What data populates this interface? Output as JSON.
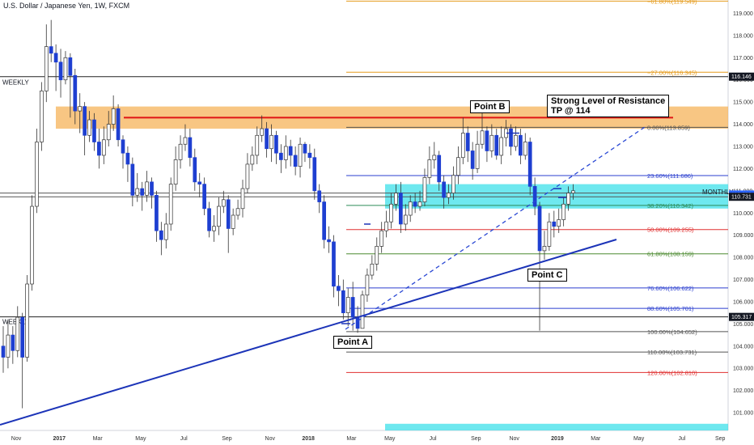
{
  "title": "U.S. Dollar / Japanese Yen, 1W, FXCM",
  "colors": {
    "up": "#ffffff",
    "down": "#1e3fd1",
    "wick": "#333333",
    "resistance_zone": "#f5b35a",
    "support_zone": "#3ee0ea",
    "resistance_line": "#e01515",
    "trendline": "#1c34b8",
    "dashed": "#2a48d4"
  },
  "labels": {
    "weekly_top": "WEEKLY",
    "weekly_bottom": "WEEKLY",
    "monthly": "MONTHLY",
    "point_a": "Point A",
    "point_b": "Point B",
    "point_c": "Point C",
    "resistance_note_1": "Strong Level of Resistance",
    "resistance_note_2": "TP @ 114"
  },
  "chart_data": {
    "type": "candlestick",
    "title": "U.S. Dollar / Japanese Yen, 1W, FXCM",
    "ylim": [
      100.2,
      119.6
    ],
    "y_ticks": [
      101,
      102,
      103,
      104,
      105,
      106,
      107,
      108,
      109,
      110,
      111,
      112,
      113,
      114,
      115,
      116,
      117,
      118,
      119
    ],
    "x_ticks": [
      {
        "label": "Nov",
        "bold": false,
        "week": 0
      },
      {
        "label": "2017",
        "bold": true,
        "week": 9
      },
      {
        "label": "Mar",
        "bold": false,
        "week": 17
      },
      {
        "label": "May",
        "bold": false,
        "week": 26
      },
      {
        "label": "Jul",
        "bold": false,
        "week": 35
      },
      {
        "label": "Sep",
        "bold": false,
        "week": 44
      },
      {
        "label": "Nov",
        "bold": false,
        "week": 53
      },
      {
        "label": "2018",
        "bold": true,
        "week": 61
      },
      {
        "label": "Mar",
        "bold": false,
        "week": 70
      },
      {
        "label": "May",
        "bold": false,
        "week": 78
      },
      {
        "label": "Jul",
        "bold": false,
        "week": 87
      },
      {
        "label": "Sep",
        "bold": false,
        "week": 96
      },
      {
        "label": "Nov",
        "bold": false,
        "week": 104
      },
      {
        "label": "2019",
        "bold": true,
        "week": 113
      },
      {
        "label": "Mar",
        "bold": false,
        "week": 121
      },
      {
        "label": "May",
        "bold": false,
        "week": 130
      },
      {
        "label": "Jul",
        "bold": false,
        "week": 139
      },
      {
        "label": "Sep",
        "bold": false,
        "week": 147
      },
      {
        "label": "Nov",
        "bold": false,
        "week": 156
      }
    ],
    "price_tags": [
      {
        "value": 116.146,
        "label": "116.146",
        "style": "dark"
      },
      {
        "value": 110.833,
        "label": "110.833",
        "style": "blue"
      },
      {
        "value": 110.731,
        "label": "110.731",
        "style": "dark"
      },
      {
        "value": 105.317,
        "label": "105.317",
        "style": "dark"
      }
    ],
    "fib_levels": [
      {
        "ratio": "-61.80%",
        "value": 119.549,
        "label": "−61.80%(119.549)",
        "color": "#e59b1c"
      },
      {
        "ratio": "-27.00%",
        "value": 116.345,
        "label": "−27.00%(116.345)",
        "color": "#e59b1c"
      },
      {
        "ratio": "0.00%",
        "value": 113.859,
        "label": "0.00%(113.859)",
        "color": "#555555"
      },
      {
        "ratio": "23.60%",
        "value": 111.686,
        "label": "23.60%(111.686)",
        "color": "#2b3fcf"
      },
      {
        "ratio": "38.20%",
        "value": 110.342,
        "label": "38.20%(110.342)",
        "color": "#2e8b57"
      },
      {
        "ratio": "50.00%",
        "value": 109.255,
        "label": "50.00%(109.255)",
        "color": "#e03030"
      },
      {
        "ratio": "61.80%",
        "value": 108.159,
        "label": "61.80%(108.159)",
        "color": "#4c8a30"
      },
      {
        "ratio": "76.60%",
        "value": 106.622,
        "label": "76.60%(106.622)",
        "color": "#2b3fcf"
      },
      {
        "ratio": "88.60%",
        "value": 105.701,
        "label": "88.60%(105.701)",
        "color": "#2b3fcf"
      },
      {
        "ratio": "100.00%",
        "value": 104.652,
        "label": "100.00%(104.652)",
        "color": "#555555"
      },
      {
        "ratio": "110.00%",
        "value": 103.731,
        "label": "110.00%(103.731)",
        "color": "#555555"
      },
      {
        "ratio": "120.00%",
        "value": 102.81,
        "label": "120.00%(102.810)",
        "color": "#e03030"
      }
    ],
    "weekly_levels": [
      116.146,
      105.317
    ],
    "monthly_level": 110.731,
    "resistance_zone": [
      113.8,
      114.8
    ],
    "resistance_line": 114.3,
    "support_zone": [
      110.2,
      111.3
    ],
    "points": {
      "A": {
        "week": 74,
        "value": 104.65
      },
      "B": {
        "week": 100,
        "value": 114.55
      },
      "C": {
        "week": 114,
        "value": 104.75
      }
    },
    "candles": [
      [
        104.0,
        103.5,
        104.9,
        102.8
      ],
      [
        103.5,
        104.5,
        105.2,
        103.0
      ],
      [
        104.5,
        103.8,
        104.9,
        103.2
      ],
      [
        103.8,
        105.3,
        105.8,
        103.5
      ],
      [
        105.3,
        103.5,
        105.5,
        101.2
      ],
      [
        103.5,
        106.8,
        107.2,
        103.3
      ],
      [
        106.8,
        110.3,
        110.8,
        106.5
      ],
      [
        110.3,
        113.2,
        113.8,
        110.0
      ],
      [
        113.2,
        115.5,
        115.9,
        112.8
      ],
      [
        115.5,
        117.5,
        118.5,
        115.0
      ],
      [
        117.5,
        117.2,
        118.7,
        116.8
      ],
      [
        117.2,
        116.8,
        117.6,
        115.5
      ],
      [
        116.8,
        116.0,
        117.4,
        115.2
      ],
      [
        116.0,
        117.0,
        117.3,
        115.8
      ],
      [
        117.0,
        116.2,
        117.2,
        114.3
      ],
      [
        116.2,
        114.6,
        116.5,
        114.0
      ],
      [
        114.6,
        114.8,
        115.4,
        113.6
      ],
      [
        114.8,
        113.5,
        115.0,
        112.6
      ],
      [
        113.5,
        114.2,
        114.6,
        113.2
      ],
      [
        114.2,
        113.2,
        114.5,
        112.8
      ],
      [
        113.2,
        112.6,
        113.8,
        112.0
      ],
      [
        112.6,
        113.3,
        113.9,
        112.2
      ],
      [
        113.3,
        114.0,
        114.6,
        113.0
      ],
      [
        114.0,
        114.7,
        115.3,
        113.7
      ],
      [
        114.7,
        113.3,
        114.9,
        113.0
      ],
      [
        113.3,
        112.7,
        113.5,
        112.0
      ],
      [
        112.7,
        112.2,
        113.0,
        111.4
      ],
      [
        112.2,
        110.8,
        112.5,
        110.3
      ],
      [
        110.8,
        111.1,
        111.8,
        110.5
      ],
      [
        111.1,
        110.8,
        111.4,
        110.1
      ],
      [
        110.8,
        111.4,
        111.9,
        110.5
      ],
      [
        111.4,
        110.8,
        111.6,
        110.2
      ],
      [
        110.8,
        109.2,
        111.0,
        108.7
      ],
      [
        109.2,
        108.8,
        109.6,
        108.1
      ],
      [
        108.8,
        109.5,
        110.0,
        108.4
      ],
      [
        109.5,
        111.3,
        111.6,
        109.2
      ],
      [
        111.3,
        112.4,
        113.0,
        111.0
      ],
      [
        112.4,
        113.1,
        113.5,
        112.0
      ],
      [
        113.1,
        113.4,
        114.0,
        112.8
      ],
      [
        113.4,
        112.5,
        113.8,
        112.1
      ],
      [
        112.5,
        111.4,
        112.9,
        111.0
      ],
      [
        111.4,
        111.3,
        111.8,
        110.7
      ],
      [
        111.3,
        110.2,
        111.6,
        109.9
      ],
      [
        110.2,
        109.2,
        110.5,
        108.9
      ],
      [
        109.2,
        109.4,
        109.9,
        108.7
      ],
      [
        109.4,
        110.3,
        110.7,
        109.0
      ],
      [
        110.3,
        110.6,
        111.0,
        110.0
      ],
      [
        110.6,
        109.3,
        110.8,
        108.2
      ],
      [
        109.3,
        109.9,
        110.2,
        109.0
      ],
      [
        109.9,
        110.2,
        110.6,
        109.7
      ],
      [
        110.2,
        111.1,
        111.5,
        109.8
      ],
      [
        111.1,
        112.2,
        112.7,
        110.9
      ],
      [
        112.2,
        112.6,
        113.0,
        111.9
      ],
      [
        112.6,
        113.5,
        113.9,
        112.2
      ],
      [
        113.5,
        113.8,
        114.4,
        113.2
      ],
      [
        113.8,
        112.9,
        114.1,
        112.5
      ],
      [
        112.9,
        113.5,
        114.0,
        112.3
      ],
      [
        113.5,
        112.7,
        113.7,
        112.2
      ],
      [
        112.7,
        112.4,
        113.1,
        111.8
      ],
      [
        112.4,
        113.0,
        113.5,
        112.0
      ],
      [
        113.0,
        112.6,
        113.3,
        112.1
      ],
      [
        112.6,
        112.1,
        113.0,
        111.7
      ],
      [
        112.1,
        113.1,
        113.4,
        111.6
      ],
      [
        113.1,
        112.7,
        113.2,
        112.3
      ],
      [
        112.7,
        112.5,
        113.1,
        112.0
      ],
      [
        112.5,
        111.0,
        112.9,
        110.6
      ],
      [
        111.0,
        110.5,
        111.3,
        110.0
      ],
      [
        110.5,
        108.8,
        110.8,
        108.4
      ],
      [
        108.8,
        108.7,
        109.4,
        108.2
      ],
      [
        108.7,
        106.7,
        109.0,
        106.2
      ],
      [
        106.7,
        106.5,
        107.2,
        105.8
      ],
      [
        106.5,
        105.5,
        107.0,
        105.2
      ],
      [
        105.5,
        106.2,
        106.6,
        104.9
      ],
      [
        106.2,
        105.3,
        106.9,
        104.7
      ],
      [
        105.3,
        104.8,
        105.8,
        104.6
      ],
      [
        104.8,
        106.3,
        106.5,
        104.8
      ],
      [
        106.3,
        107.2,
        107.5,
        106.0
      ],
      [
        107.2,
        107.7,
        108.1,
        107.0
      ],
      [
        107.7,
        108.5,
        108.9,
        107.4
      ],
      [
        108.5,
        109.2,
        109.6,
        108.2
      ],
      [
        109.2,
        109.6,
        110.1,
        108.9
      ],
      [
        109.6,
        110.4,
        110.9,
        109.3
      ],
      [
        110.4,
        110.9,
        111.3,
        110.1
      ],
      [
        110.9,
        109.5,
        111.4,
        109.1
      ],
      [
        109.5,
        109.9,
        110.4,
        109.2
      ],
      [
        109.9,
        110.5,
        110.8,
        109.6
      ],
      [
        110.5,
        110.3,
        110.9,
        110.0
      ],
      [
        110.3,
        110.5,
        111.0,
        110.1
      ],
      [
        110.5,
        111.6,
        112.0,
        110.3
      ],
      [
        111.6,
        112.4,
        113.0,
        111.3
      ],
      [
        112.4,
        112.6,
        113.2,
        112.0
      ],
      [
        112.6,
        111.4,
        112.8,
        111.0
      ],
      [
        111.4,
        110.7,
        111.7,
        110.2
      ],
      [
        110.7,
        110.9,
        111.3,
        110.4
      ],
      [
        110.9,
        111.7,
        112.1,
        110.6
      ],
      [
        111.7,
        112.5,
        113.0,
        111.3
      ],
      [
        112.5,
        113.6,
        114.3,
        112.2
      ],
      [
        113.6,
        112.8,
        113.9,
        112.3
      ],
      [
        112.8,
        112.0,
        113.2,
        111.5
      ],
      [
        112.0,
        113.1,
        113.7,
        111.8
      ],
      [
        113.1,
        113.7,
        114.5,
        112.9
      ],
      [
        113.7,
        112.8,
        113.9,
        112.3
      ],
      [
        112.8,
        113.5,
        114.0,
        112.5
      ],
      [
        113.5,
        112.6,
        113.8,
        112.4
      ],
      [
        112.6,
        113.4,
        113.9,
        112.2
      ],
      [
        113.4,
        113.8,
        114.2,
        113.0
      ],
      [
        113.8,
        113.0,
        114.0,
        112.6
      ],
      [
        113.0,
        113.5,
        113.9,
        112.8
      ],
      [
        113.5,
        112.6,
        113.8,
        112.2
      ],
      [
        112.6,
        113.2,
        113.6,
        112.4
      ],
      [
        113.2,
        111.2,
        113.4,
        110.8
      ],
      [
        111.2,
        110.3,
        111.6,
        109.9
      ],
      [
        110.3,
        108.3,
        110.5,
        104.7
      ],
      [
        108.3,
        108.5,
        109.2,
        107.9
      ],
      [
        108.5,
        109.6,
        110.0,
        108.3
      ],
      [
        109.6,
        109.4,
        110.1,
        108.9
      ],
      [
        109.4,
        109.7,
        110.2,
        109.1
      ],
      [
        109.7,
        110.4,
        110.7,
        109.4
      ],
      [
        110.4,
        110.9,
        111.2,
        110.1
      ],
      [
        110.9,
        111.0,
        111.3,
        110.6
      ]
    ]
  }
}
